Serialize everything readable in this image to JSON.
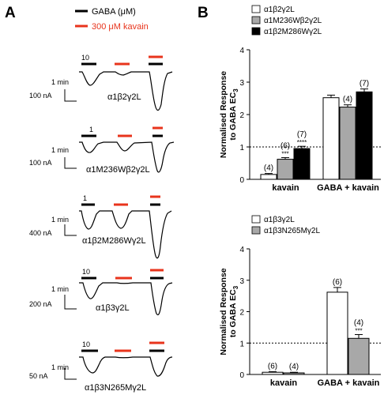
{
  "panel_a": {
    "label": "A",
    "legend": [
      {
        "text": "GABA (μM)",
        "color": "#000000"
      },
      {
        "text": "300 μM kavain",
        "color": "#e8341c"
      }
    ],
    "traces": [
      {
        "name": "α1β2γ2L",
        "gaba": "10",
        "scale_time": "1 min",
        "scale_current": "100 nA"
      },
      {
        "name": "α1M236Wβ2γ2L",
        "gaba": "1",
        "scale_time": "1 min",
        "scale_current": "100 nA"
      },
      {
        "name": "α1β2M286Wγ2L",
        "gaba": "1",
        "scale_time": "1 min",
        "scale_current": "400 nA"
      },
      {
        "name": "α1β3γ2L",
        "gaba": "10",
        "scale_time": "1 min",
        "scale_current": "200 nA"
      },
      {
        "name": "α1β3N265Mγ2L",
        "gaba": "10",
        "scale_time": "1 min",
        "scale_current": "50 nA"
      }
    ]
  },
  "panel_b": {
    "label": "B"
  },
  "chart_data": [
    {
      "type": "bar",
      "categories": [
        "kavain",
        "GABA + kavain"
      ],
      "ylabel": "Normalised Response to GABA EC3",
      "ylim": [
        0,
        4
      ],
      "yticks": [
        "0",
        "1",
        "2",
        "3",
        "4"
      ],
      "reference_line": 1,
      "series": [
        {
          "name": "α1β2γ2L",
          "fill": "#ffffff",
          "values": [
            0.15,
            2.52
          ],
          "n": [
            "(4)",
            ""
          ],
          "sig": [
            "",
            ""
          ]
        },
        {
          "name": "α1M236Wβ2γ2L",
          "fill": "#a8a8a8",
          "values": [
            0.62,
            2.23
          ],
          "n": [
            "(6)",
            "(4)"
          ],
          "sig": [
            "***",
            ""
          ]
        },
        {
          "name": "α1β2M286Wγ2L",
          "fill": "#000000",
          "values": [
            0.95,
            2.7
          ],
          "n": [
            "(7)",
            "(7)"
          ],
          "sig": [
            "****",
            ""
          ]
        }
      ]
    },
    {
      "type": "bar",
      "categories": [
        "kavain",
        "GABA + kavain"
      ],
      "ylabel": "Normalised Response to GABA EC3",
      "ylim": [
        0,
        4
      ],
      "yticks": [
        "0",
        "1",
        "2",
        "3",
        "4"
      ],
      "reference_line": 1,
      "series": [
        {
          "name": "α1β3γ2L",
          "fill": "#ffffff",
          "values": [
            0.07,
            2.62
          ],
          "n": [
            "(6)",
            "(6)"
          ],
          "sig": [
            "",
            ""
          ]
        },
        {
          "name": "α1β3N265Mγ2L",
          "fill": "#a8a8a8",
          "values": [
            0.05,
            1.15
          ],
          "n": [
            "(4)",
            "(4)"
          ],
          "sig": [
            "",
            "***"
          ]
        }
      ]
    }
  ]
}
